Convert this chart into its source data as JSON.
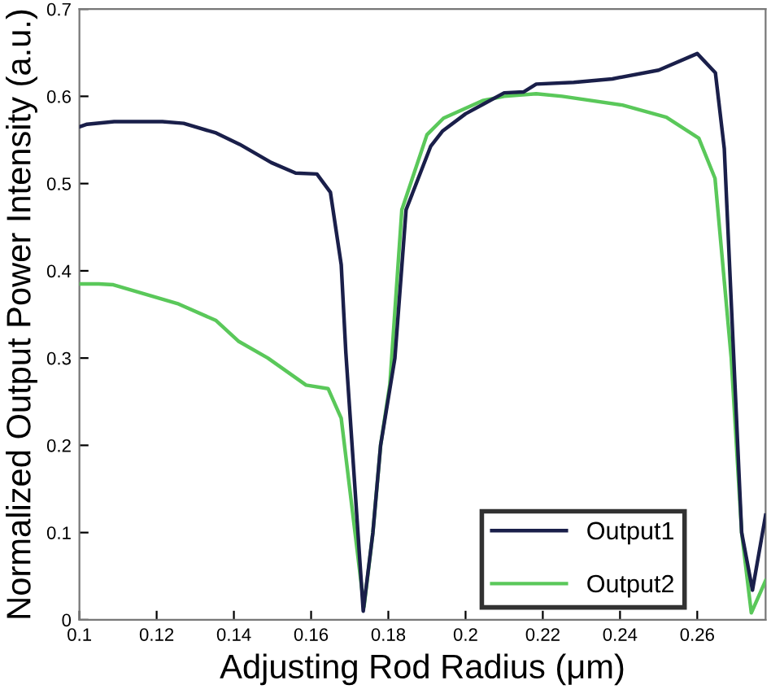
{
  "chart_data": {
    "type": "line",
    "xlabel": "Adjusting Rod Radius (μm)",
    "ylabel": "Normalized Output Power Intensity (a.u.)",
    "xlim": [
      0.1,
      0.2777
    ],
    "ylim": [
      0,
      0.7
    ],
    "xticks": [
      0.1,
      0.12,
      0.14,
      0.16,
      0.18,
      0.2,
      0.22,
      0.24,
      0.26
    ],
    "yticks": [
      0,
      0.1,
      0.2,
      0.3,
      0.4,
      0.5,
      0.6,
      0.7
    ],
    "grid": false,
    "legend": "bottom right",
    "marker": "none",
    "line_style": "solid",
    "series": [
      {
        "name": "Output1",
        "color": "#1a1f4a",
        "x": [
          0.1,
          0.102,
          0.109,
          0.1215,
          0.127,
          0.1354,
          0.1415,
          0.1497,
          0.156,
          0.1615,
          0.165,
          0.1678,
          0.169,
          0.1735,
          0.176,
          0.178,
          0.1817,
          0.1846,
          0.191,
          0.194,
          0.2,
          0.205,
          0.21,
          0.215,
          0.2183,
          0.228,
          0.238,
          0.25,
          0.26,
          0.2647,
          0.267,
          0.2715,
          0.2743,
          0.2777
        ],
        "values": [
          0.565,
          0.568,
          0.571,
          0.571,
          0.569,
          0.558,
          0.545,
          0.524,
          0.512,
          0.511,
          0.49,
          0.407,
          0.306,
          0.01,
          0.1,
          0.2,
          0.3,
          0.47,
          0.543,
          0.56,
          0.58,
          0.592,
          0.604,
          0.605,
          0.614,
          0.616,
          0.62,
          0.63,
          0.649,
          0.627,
          0.54,
          0.1,
          0.034,
          0.12
        ]
      },
      {
        "name": "Output2",
        "color": "#5ac85a",
        "x": [
          0.1,
          0.105,
          0.1088,
          0.1257,
          0.1354,
          0.1413,
          0.1488,
          0.1587,
          0.1644,
          0.1678,
          0.1737,
          0.176,
          0.178,
          0.1804,
          0.1835,
          0.19,
          0.1943,
          0.2044,
          0.21,
          0.2183,
          0.225,
          0.2406,
          0.252,
          0.2604,
          0.2646,
          0.2688,
          0.2715,
          0.274,
          0.2777
        ],
        "values": [
          0.385,
          0.385,
          0.384,
          0.362,
          0.343,
          0.319,
          0.3,
          0.269,
          0.265,
          0.231,
          0.015,
          0.1,
          0.2,
          0.27,
          0.47,
          0.556,
          0.575,
          0.595,
          0.6,
          0.603,
          0.6,
          0.59,
          0.576,
          0.552,
          0.506,
          0.3,
          0.1,
          0.008,
          0.045
        ]
      }
    ]
  }
}
